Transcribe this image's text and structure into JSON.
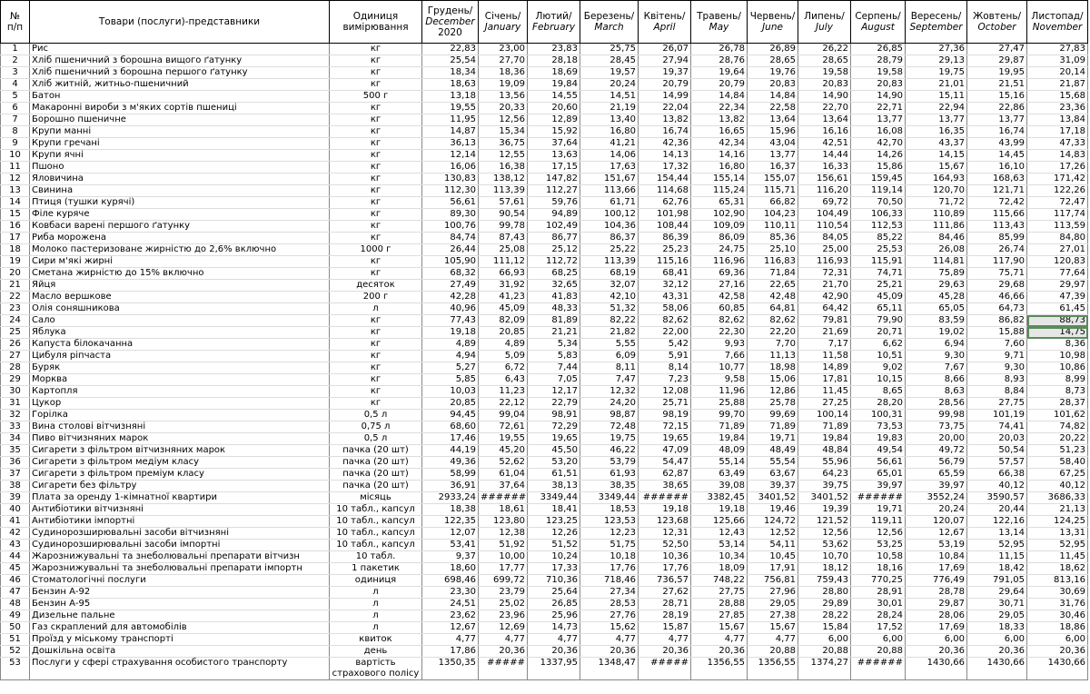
{
  "table": {
    "header": [
      [
        "№",
        "п/п"
      ],
      [
        "Товари (послуги)-представники"
      ],
      [
        "Одиниця",
        "вимірювання"
      ],
      [
        "Грудень/",
        "December",
        "2020"
      ],
      [
        "Січень/",
        "January"
      ],
      [
        "Лютий/",
        "February"
      ],
      [
        "Березень/",
        "March"
      ],
      [
        "Квітень/",
        "April"
      ],
      [
        "Травень/",
        "May"
      ],
      [
        "Червень/",
        "June"
      ],
      [
        "Липень/",
        "July"
      ],
      [
        "Серпень/",
        "August"
      ],
      [
        "Вересень/",
        "September"
      ],
      [
        "Жовтень/",
        "October"
      ],
      [
        "Листопад/",
        "November"
      ]
    ],
    "rows": [
      [
        "1",
        "Рис",
        "кг",
        "22,83",
        "23,00",
        "23,83",
        "25,75",
        "26,07",
        "26,78",
        "26,89",
        "26,22",
        "26,85",
        "27,36",
        "27,47",
        "27,83"
      ],
      [
        "2",
        "Хліб пшеничний з борошна вищого ґатунку",
        "кг",
        "25,54",
        "27,70",
        "28,18",
        "28,45",
        "27,94",
        "28,76",
        "28,65",
        "28,65",
        "28,79",
        "29,13",
        "29,87",
        "31,09"
      ],
      [
        "3",
        "Хліб пшеничний з борошна першого ґатунку",
        "кг",
        "18,34",
        "18,36",
        "18,69",
        "19,57",
        "19,37",
        "19,64",
        "19,76",
        "19,58",
        "19,58",
        "19,75",
        "19,95",
        "20,14"
      ],
      [
        "4",
        "Хліб житній, житньо-пшеничний",
        "кг",
        "18,63",
        "19,09",
        "19,84",
        "20,24",
        "20,79",
        "20,79",
        "20,83",
        "20,83",
        "20,83",
        "21,01",
        "21,51",
        "21,87"
      ],
      [
        "5",
        "Батон",
        "500 г",
        "13,18",
        "13,56",
        "14,55",
        "14,51",
        "14,99",
        "14,84",
        "14,84",
        "14,90",
        "14,90",
        "15,11",
        "15,16",
        "15,68"
      ],
      [
        "6",
        "Макаронні вироби з м'яких сортів пшениці",
        "кг",
        "19,55",
        "20,33",
        "20,60",
        "21,19",
        "22,04",
        "22,34",
        "22,58",
        "22,70",
        "22,71",
        "22,94",
        "22,86",
        "23,36"
      ],
      [
        "7",
        "Борошно пшеничне",
        "кг",
        "11,95",
        "12,56",
        "12,89",
        "13,40",
        "13,82",
        "13,82",
        "13,64",
        "13,64",
        "13,77",
        "13,77",
        "13,77",
        "13,84"
      ],
      [
        "8",
        "Крупи манні",
        "кг",
        "14,87",
        "15,34",
        "15,92",
        "16,80",
        "16,74",
        "16,65",
        "15,96",
        "16,16",
        "16,08",
        "16,35",
        "16,74",
        "17,18"
      ],
      [
        "9",
        "Крупи гречані",
        "кг",
        "36,13",
        "36,75",
        "37,64",
        "41,21",
        "42,36",
        "42,34",
        "43,04",
        "42,51",
        "42,70",
        "43,37",
        "43,99",
        "47,33"
      ],
      [
        "10",
        "Крупи ячні",
        "кг",
        "12,14",
        "12,55",
        "13,63",
        "14,06",
        "14,13",
        "14,16",
        "13,77",
        "14,44",
        "14,26",
        "14,15",
        "14,45",
        "14,83"
      ],
      [
        "11",
        "Пшоно",
        "кг",
        "16,06",
        "16,38",
        "17,15",
        "17,63",
        "17,32",
        "16,80",
        "16,37",
        "16,33",
        "15,86",
        "15,67",
        "16,10",
        "17,26"
      ],
      [
        "12",
        "Яловичина",
        "кг",
        "130,83",
        "138,12",
        "147,82",
        "151,67",
        "154,44",
        "155,14",
        "155,07",
        "156,61",
        "159,45",
        "164,93",
        "168,63",
        "171,42"
      ],
      [
        "13",
        "Свинина",
        "кг",
        "112,30",
        "113,39",
        "112,27",
        "113,66",
        "114,68",
        "115,24",
        "115,71",
        "116,20",
        "119,14",
        "120,70",
        "121,71",
        "122,26"
      ],
      [
        "14",
        "Птиця (тушки курячі)",
        "кг",
        "56,61",
        "57,61",
        "59,76",
        "61,71",
        "62,76",
        "65,31",
        "66,82",
        "69,72",
        "70,50",
        "71,72",
        "72,42",
        "72,47"
      ],
      [
        "15",
        "Філе куряче",
        "кг",
        "89,30",
        "90,54",
        "94,89",
        "100,12",
        "101,98",
        "102,90",
        "104,23",
        "104,49",
        "106,33",
        "110,89",
        "115,66",
        "117,74"
      ],
      [
        "16",
        "Ковбаси варені першого ґатунку",
        "кг",
        "100,76",
        "99,78",
        "102,49",
        "104,36",
        "108,44",
        "109,09",
        "110,11",
        "110,54",
        "112,53",
        "111,86",
        "113,43",
        "113,59"
      ],
      [
        "17",
        "Риба морожена",
        "кг",
        "84,74",
        "87,43",
        "86,77",
        "86,37",
        "86,39",
        "86,09",
        "85,36",
        "84,05",
        "85,22",
        "84,46",
        "85,99",
        "84,80"
      ],
      [
        "18",
        "Молоко пастеризоване жирністю до 2,6% включно",
        "1000 г",
        "26,44",
        "25,08",
        "25,12",
        "25,22",
        "25,23",
        "24,75",
        "25,10",
        "25,00",
        "25,53",
        "26,08",
        "26,74",
        "27,01"
      ],
      [
        "19",
        "Сири м'які жирні",
        "кг",
        "105,90",
        "111,12",
        "112,72",
        "113,39",
        "115,16",
        "116,96",
        "116,83",
        "116,93",
        "115,91",
        "114,81",
        "117,90",
        "120,83"
      ],
      [
        "20",
        "Сметана жирністю до 15% включно",
        "кг",
        "68,32",
        "66,93",
        "68,25",
        "68,19",
        "68,41",
        "69,36",
        "71,84",
        "72,31",
        "74,71",
        "75,89",
        "75,71",
        "77,64"
      ],
      [
        "21",
        "Яйця",
        "десяток",
        "27,49",
        "31,92",
        "32,65",
        "32,07",
        "32,12",
        "27,16",
        "22,65",
        "21,70",
        "25,21",
        "29,63",
        "29,68",
        "29,97"
      ],
      [
        "22",
        "Масло вершкове",
        "200 г",
        "42,28",
        "41,23",
        "41,83",
        "42,10",
        "43,31",
        "42,58",
        "42,48",
        "42,90",
        "45,09",
        "45,28",
        "46,66",
        "47,39"
      ],
      [
        "23",
        "Олія соняшникова",
        "л",
        "40,96",
        "45,09",
        "48,33",
        "51,32",
        "58,06",
        "60,85",
        "64,81",
        "64,42",
        "65,11",
        "65,05",
        "64,73",
        "61,45"
      ],
      [
        "24",
        "Сало",
        "кг",
        "77,43",
        "82,09",
        "81,89",
        "82,22",
        "82,62",
        "82,62",
        "82,62",
        "79,81",
        "79,90",
        "83,59",
        "86,82",
        "88,73"
      ],
      [
        "25",
        "Яблука",
        "кг",
        "19,18",
        "20,85",
        "21,21",
        "21,82",
        "22,00",
        "22,30",
        "22,20",
        "21,69",
        "20,71",
        "19,02",
        "15,88",
        "14,75"
      ],
      [
        "26",
        "Капуста білокачанна",
        "кг",
        "4,89",
        "4,89",
        "5,34",
        "5,55",
        "5,42",
        "9,93",
        "7,70",
        "7,17",
        "6,62",
        "6,94",
        "7,60",
        "8,36"
      ],
      [
        "27",
        "Цибуля ріпчаста",
        "кг",
        "4,94",
        "5,09",
        "5,83",
        "6,09",
        "5,91",
        "7,66",
        "11,13",
        "11,58",
        "10,51",
        "9,30",
        "9,71",
        "10,98"
      ],
      [
        "28",
        "Буряк",
        "кг",
        "5,27",
        "6,72",
        "7,44",
        "8,11",
        "8,14",
        "10,77",
        "18,98",
        "14,89",
        "9,02",
        "7,67",
        "9,30",
        "10,86"
      ],
      [
        "29",
        "Морква",
        "кг",
        "5,85",
        "6,43",
        "7,05",
        "7,47",
        "7,23",
        "9,58",
        "15,06",
        "17,81",
        "10,15",
        "8,66",
        "8,93",
        "8,99"
      ],
      [
        "30",
        "Картопля",
        "кг",
        "10,03",
        "11,23",
        "12,17",
        "12,32",
        "12,08",
        "11,96",
        "12,86",
        "11,45",
        "8,65",
        "8,63",
        "8,84",
        "8,73"
      ],
      [
        "31",
        "Цукор",
        "кг",
        "20,85",
        "22,12",
        "22,79",
        "24,20",
        "25,71",
        "25,88",
        "25,78",
        "27,25",
        "28,20",
        "28,56",
        "27,75",
        "28,37"
      ],
      [
        "32",
        "Горілка",
        "0,5 л",
        "94,45",
        "99,04",
        "98,91",
        "98,87",
        "98,19",
        "99,70",
        "99,69",
        "100,14",
        "100,31",
        "99,98",
        "101,19",
        "101,62"
      ],
      [
        "33",
        "Вина столові вітчизняні",
        "0,75 л",
        "68,60",
        "72,61",
        "72,29",
        "72,48",
        "72,15",
        "71,89",
        "71,89",
        "71,89",
        "73,53",
        "73,75",
        "74,41",
        "74,82"
      ],
      [
        "34",
        "Пиво вітчизняних марок",
        "0,5 л",
        "17,46",
        "19,55",
        "19,65",
        "19,75",
        "19,65",
        "19,84",
        "19,71",
        "19,84",
        "19,83",
        "20,00",
        "20,03",
        "20,22"
      ],
      [
        "35",
        "Сигарети з фільтром вітчизняних марок",
        "пачка (20 шт)",
        "44,19",
        "45,20",
        "45,50",
        "46,22",
        "47,09",
        "48,09",
        "48,49",
        "48,84",
        "49,54",
        "49,72",
        "50,54",
        "51,23"
      ],
      [
        "36",
        "Сигарети з фільтром медіум класу",
        "пачка (20 шт)",
        "49,36",
        "52,62",
        "53,20",
        "53,79",
        "54,47",
        "55,14",
        "55,54",
        "55,96",
        "56,61",
        "56,79",
        "57,57",
        "58,40"
      ],
      [
        "37",
        "Сигарети з фільтром преміум класу",
        "пачка (20 шт)",
        "58,99",
        "61,04",
        "61,51",
        "61,93",
        "62,87",
        "63,49",
        "63,67",
        "64,23",
        "65,01",
        "65,59",
        "66,38",
        "67,25"
      ],
      [
        "38",
        "Сигарети без фільтру",
        "пачка (20 шт)",
        "36,91",
        "37,64",
        "38,13",
        "38,35",
        "38,65",
        "39,08",
        "39,37",
        "39,75",
        "39,97",
        "39,97",
        "40,12",
        "40,12"
      ],
      [
        "39",
        "Плата за оренду 1-кімнатної квартири",
        "місяць",
        "2933,24",
        "######",
        "3349,44",
        "3349,44",
        "######",
        "3382,45",
        "3401,52",
        "3401,52",
        "######",
        "3552,24",
        "3590,57",
        "3686,33"
      ],
      [
        "40",
        "Антибіотики вітчизняні",
        "10 табл., капсул",
        "18,38",
        "18,61",
        "18,41",
        "18,53",
        "19,18",
        "19,18",
        "19,46",
        "19,39",
        "19,71",
        "20,24",
        "20,44",
        "21,13"
      ],
      [
        "41",
        "Антибіотики імпортні",
        "10 табл., капсул",
        "122,35",
        "123,80",
        "123,25",
        "123,53",
        "123,68",
        "125,66",
        "124,72",
        "121,52",
        "119,11",
        "120,07",
        "122,16",
        "124,25"
      ],
      [
        "42",
        "Судинорозширювальні засоби вітчизняні",
        "10 табл., капсул",
        "12,07",
        "12,38",
        "12,26",
        "12,23",
        "12,31",
        "12,43",
        "12,52",
        "12,56",
        "12,56",
        "12,67",
        "13,14",
        "13,31"
      ],
      [
        "43",
        "Судинорозширювальні засоби імпортні",
        "10 табл., капсул",
        "53,41",
        "51,92",
        "51,52",
        "51,75",
        "52,50",
        "53,14",
        "54,11",
        "53,62",
        "53,25",
        "53,19",
        "52,95",
        "52,95"
      ],
      [
        "44",
        "Жарознижувальні та знеболювальні препарати вітчизн",
        "10 табл.",
        "9,37",
        "10,00",
        "10,24",
        "10,18",
        "10,36",
        "10,34",
        "10,45",
        "10,70",
        "10,58",
        "10,84",
        "11,15",
        "11,45"
      ],
      [
        "45",
        "Жарознижувальні та знеболювальні препарати імпортн",
        "1 пакетик",
        "18,60",
        "17,77",
        "17,33",
        "17,76",
        "17,76",
        "18,09",
        "17,91",
        "18,12",
        "18,16",
        "17,69",
        "18,42",
        "18,62"
      ],
      [
        "46",
        "Стоматологічні послуги",
        "одиниця",
        "698,46",
        "699,72",
        "710,36",
        "718,46",
        "736,57",
        "748,22",
        "756,81",
        "759,43",
        "770,25",
        "776,49",
        "791,05",
        "813,16"
      ],
      [
        "47",
        "Бензин А-92",
        "л",
        "23,30",
        "23,79",
        "25,64",
        "27,34",
        "27,62",
        "27,75",
        "27,96",
        "28,80",
        "28,91",
        "28,78",
        "29,64",
        "30,69"
      ],
      [
        "48",
        "Бензин А-95",
        "л",
        "24,51",
        "25,02",
        "26,85",
        "28,53",
        "28,71",
        "28,88",
        "29,05",
        "29,89",
        "30,01",
        "29,87",
        "30,71",
        "31,76"
      ],
      [
        "49",
        "Дизельне пальне",
        "л",
        "23,62",
        "23,96",
        "25,96",
        "27,76",
        "28,19",
        "27,85",
        "27,38",
        "28,22",
        "28,24",
        "28,06",
        "29,05",
        "30,46"
      ],
      [
        "50",
        "Газ скраплений для автомобілів",
        "л",
        "12,67",
        "12,69",
        "14,73",
        "15,62",
        "15,87",
        "15,67",
        "15,67",
        "15,84",
        "17,52",
        "17,69",
        "18,33",
        "18,86"
      ],
      [
        "51",
        "Проїзд у міському транспорті",
        "квиток",
        "4,77",
        "4,77",
        "4,77",
        "4,77",
        "4,77",
        "4,77",
        "4,77",
        "6,00",
        "6,00",
        "6,00",
        "6,00",
        "6,00"
      ],
      [
        "52",
        "Дошкільна освіта",
        "день",
        "17,86",
        "20,36",
        "20,36",
        "20,36",
        "20,36",
        "20,36",
        "20,88",
        "20,88",
        "20,88",
        "20,36",
        "20,36",
        "20,36"
      ],
      [
        "53",
        "Послуги у сфері страхування особистого транспорту",
        "вартість страхового полісу",
        "1350,35",
        "#####",
        "1337,95",
        "1348,47",
        "#####",
        "1356,55",
        "1356,55",
        "1374,27",
        "######",
        "1430,66",
        "1430,66",
        "1430,66"
      ]
    ]
  }
}
